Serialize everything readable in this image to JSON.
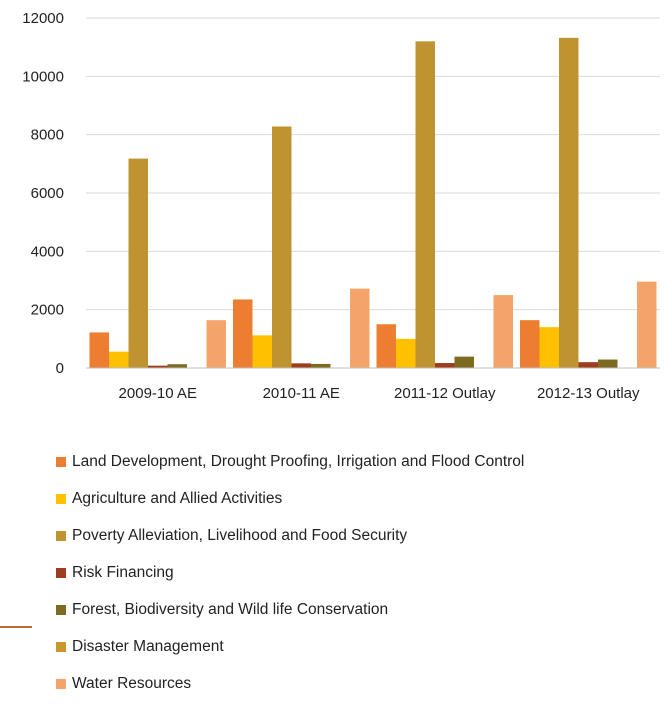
{
  "chart_data": {
    "type": "bar",
    "title": "",
    "xlabel": "",
    "ylabel": "",
    "ylim": [
      0,
      12000
    ],
    "yticks": [
      0,
      2000,
      4000,
      6000,
      8000,
      10000,
      12000
    ],
    "ytick_labels": [
      "0",
      "2000",
      "4000",
      "6000",
      "8000",
      "10000",
      "12000"
    ],
    "grid": true,
    "legend_position": "bottom",
    "categories": [
      "2009-10 AE",
      "2010-11 AE",
      "2011-12 Outlay",
      "2012-13 Outlay"
    ],
    "series": [
      {
        "name": "Land Development, Drought Proofing, Irrigation and Flood Control",
        "color": "#ed7d31",
        "values": [
          1220,
          2350,
          1500,
          1640
        ]
      },
      {
        "name": "Agriculture and Allied Activities",
        "color": "#ffc000",
        "values": [
          560,
          1120,
          1000,
          1400
        ]
      },
      {
        "name": "Poverty Alleviation, Livelihood and Food Security",
        "color": "#bf9430",
        "values": [
          7180,
          8280,
          11200,
          11320
        ]
      },
      {
        "name": "Risk Financing",
        "color": "#9e3d1e",
        "values": [
          80,
          160,
          170,
          200
        ]
      },
      {
        "name": "Forest, Biodiversity and Wild life Conservation",
        "color": "#7f6a21",
        "values": [
          130,
          140,
          390,
          290
        ]
      },
      {
        "name": "Disaster Management",
        "color": "#c8982c",
        "values": [
          0,
          0,
          0,
          0
        ]
      },
      {
        "name": "Water Resources",
        "color": "#f4a46a",
        "values": [
          1640,
          2720,
          2500,
          2960
        ]
      }
    ]
  },
  "accent_color": "#c06a36"
}
